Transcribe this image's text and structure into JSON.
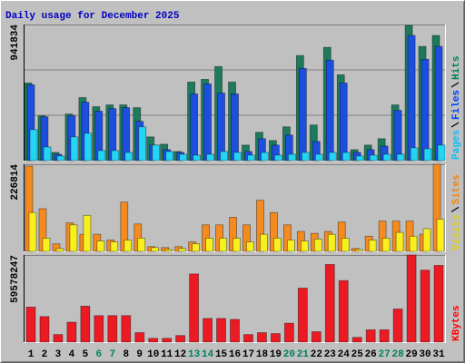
{
  "chart_data": [
    {
      "type": "bar",
      "title": "Daily usage for December 2025",
      "title_color": "#0000c0",
      "ylim": [
        0,
        941834
      ],
      "yticks": [
        941834
      ],
      "grid": true,
      "series": [
        {
          "name": "Hits",
          "color": "#1d7a5c",
          "label_color": "#00805c",
          "values": [
            537300,
            309700,
            56900,
            322400,
            436100,
            372900,
            385600,
            385600,
            366600,
            164300,
            113800,
            63200,
            543600,
            562600,
            651100,
            543600,
            107500,
            196000,
            139100,
            233900,
            726900,
            246500,
            783800,
            594200,
            75900,
            107500,
            151700,
            385600,
            935500,
            790100,
            866000
          ]
        },
        {
          "name": "Files",
          "color": "#1c4fe0",
          "label_color": "#0040ff",
          "values": [
            524600,
            303400,
            44200,
            309700,
            404500,
            341300,
            360300,
            366600,
            271800,
            107500,
            75900,
            56900,
            461400,
            531000,
            467800,
            461400,
            63200,
            151700,
            107500,
            177000,
            638400,
            132700,
            695300,
            537300,
            56900,
            75900,
            101100,
            347700,
            866000,
            701600,
            790100
          ]
        },
        {
          "name": "Pages",
          "color": "#24d4f4",
          "label_color": "#00c0ff",
          "values": [
            214900,
            94800,
            31600,
            164300,
            189600,
            69500,
            69500,
            56900,
            233900,
            107500,
            63200,
            44200,
            37900,
            44200,
            63200,
            56900,
            37900,
            56900,
            37900,
            44200,
            56900,
            44200,
            56900,
            56900,
            31600,
            37900,
            44200,
            44200,
            88500,
            82200,
            107500
          ]
        }
      ]
    },
    {
      "type": "bar",
      "ylim": [
        0,
        226814
      ],
      "yticks": [
        226814
      ],
      "grid": false,
      "series": [
        {
          "name": "Sites",
          "color": "#f58a1e",
          "label_color": "#ff8000",
          "values": [
            221900,
            110900,
            19700,
            74000,
            44400,
            44400,
            29600,
            128200,
            71500,
            12300,
            9900,
            12300,
            24700,
            69000,
            69000,
            88700,
            69000,
            133100,
            101100,
            69000,
            51800,
            46800,
            51800,
            76400,
            7400,
            39400,
            78900,
            78900,
            78900,
            44400,
            226814
          ]
        },
        {
          "name": "Visits",
          "color": "#f8f01e",
          "label_color": "#e0d000",
          "values": [
            101100,
            34500,
            7400,
            69000,
            93700,
            27100,
            24700,
            29600,
            34500,
            9900,
            4900,
            7400,
            19700,
            34500,
            34500,
            34500,
            24700,
            44400,
            34500,
            29600,
            27100,
            32000,
            44400,
            34500,
            4900,
            29600,
            34500,
            49300,
            39400,
            59200,
            83800
          ]
        }
      ]
    },
    {
      "type": "bar",
      "ylim": [
        0,
        59578247
      ],
      "yticks": [
        59578247
      ],
      "grid": false,
      "categories": [
        "1",
        "2",
        "3",
        "4",
        "5",
        "6",
        "7",
        "8",
        "9",
        "10",
        "11",
        "12",
        "13",
        "14",
        "15",
        "16",
        "17",
        "18",
        "19",
        "20",
        "21",
        "22",
        "23",
        "24",
        "25",
        "26",
        "27",
        "28",
        "29",
        "30",
        "31"
      ],
      "weekends": [
        "6",
        "7",
        "13",
        "14",
        "20",
        "21",
        "27",
        "28"
      ],
      "weekend_color": "#008060",
      "series": [
        {
          "name": "KBytes",
          "color": "#ec1a22",
          "label_color": "#ff0000",
          "values": [
            23960800,
            17484900,
            5180700,
            13599400,
            24608400,
            18132500,
            18132500,
            18132500,
            6475900,
            2590400,
            2590400,
            4533100,
            46626500,
            16189800,
            16189800,
            15542200,
            5180700,
            6475900,
            5828300,
            12951800,
            36912600,
            7123500,
            53102400,
            42093400,
            3238000,
            8418700,
            8418700,
            22665700,
            59578247,
            49216800,
            52454800
          ]
        }
      ]
    }
  ]
}
